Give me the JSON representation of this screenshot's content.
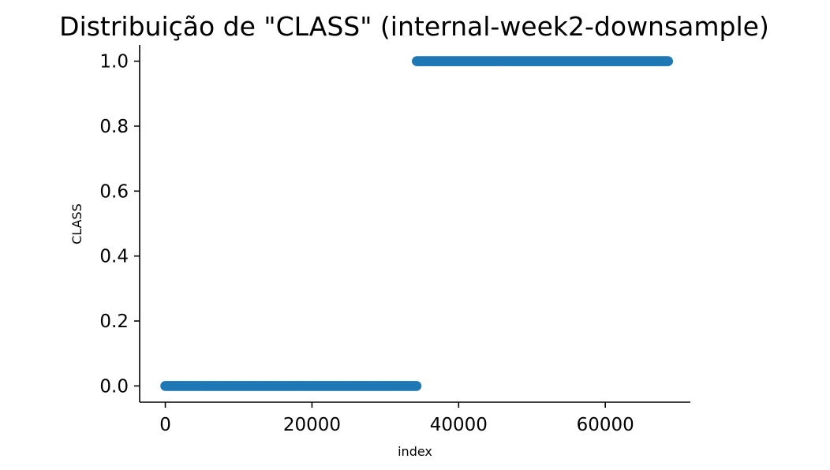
{
  "chart_data": {
    "type": "scatter",
    "title": "Distribuição de \"CLASS\" (internal-week2-downsample)",
    "xlabel": "index",
    "ylabel": "CLASS",
    "xlim": [
      -3500,
      71600
    ],
    "ylim": [
      -0.05,
      1.05
    ],
    "x_ticks": [
      0,
      20000,
      40000,
      60000
    ],
    "x_tick_labels": [
      "0",
      "20000",
      "40000",
      "60000"
    ],
    "y_ticks": [
      0.0,
      0.2,
      0.4,
      0.6,
      0.8,
      1.0
    ],
    "y_tick_labels": [
      "0.0",
      "0.2",
      "0.4",
      "0.6",
      "0.8",
      "1.0"
    ],
    "grid": false,
    "series": [
      {
        "color": "#1f77b4",
        "segments": [
          {
            "x_start": 0,
            "x_end": 34300,
            "y": 0
          },
          {
            "x_start": 34300,
            "x_end": 68600,
            "y": 1
          }
        ]
      }
    ]
  }
}
